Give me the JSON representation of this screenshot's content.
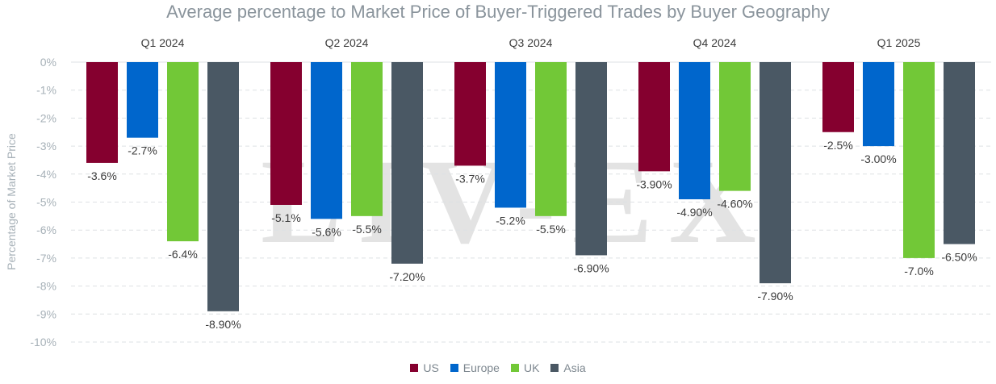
{
  "chart_data": {
    "type": "bar",
    "title": "Average percentage to Market Price of Buyer-Triggered Trades by Buyer Geography",
    "xlabel": "",
    "ylabel": "Percentage of Market Price",
    "ylim": [
      -10,
      0
    ],
    "yticks": [
      "0%",
      "-1%",
      "-2%",
      "-3%",
      "-4%",
      "-5%",
      "-6%",
      "-7%",
      "-8%",
      "-9%",
      "-10%"
    ],
    "categories": [
      "Q1 2024",
      "Q2 2024",
      "Q3 2024",
      "Q4 2024",
      "Q1 2025"
    ],
    "grid": true,
    "legend_position": "bottom",
    "series": [
      {
        "name": "US",
        "color": "#85002f",
        "values": [
          -3.6,
          -5.1,
          -3.7,
          -3.9,
          -2.5
        ],
        "labels": [
          "-3.6%",
          "-5.1%",
          "-3.7%",
          "-3.90%",
          "-2.5%"
        ]
      },
      {
        "name": "Europe",
        "color": "#0066cc",
        "values": [
          -2.7,
          -5.6,
          -5.2,
          -4.9,
          -3.0
        ],
        "labels": [
          "-2.7%",
          "-5.6%",
          "-5.2%",
          "-4.90%",
          "-3.00%"
        ]
      },
      {
        "name": "UK",
        "color": "#72c837",
        "values": [
          -6.4,
          -5.5,
          -5.5,
          -4.6,
          -7.0
        ],
        "labels": [
          "-6.4%",
          "-5.5%",
          "-5.5%",
          "-4.60%",
          "-7.0%"
        ]
      },
      {
        "name": "Asia",
        "color": "#4a5864",
        "values": [
          -8.9,
          -7.2,
          -6.9,
          -7.9,
          -6.5
        ],
        "labels": [
          "-8.90%",
          "-7.20%",
          "-6.90%",
          "-7.90%",
          "-6.50%"
        ]
      }
    ]
  },
  "watermark": {
    "text": "LIV-EX"
  }
}
